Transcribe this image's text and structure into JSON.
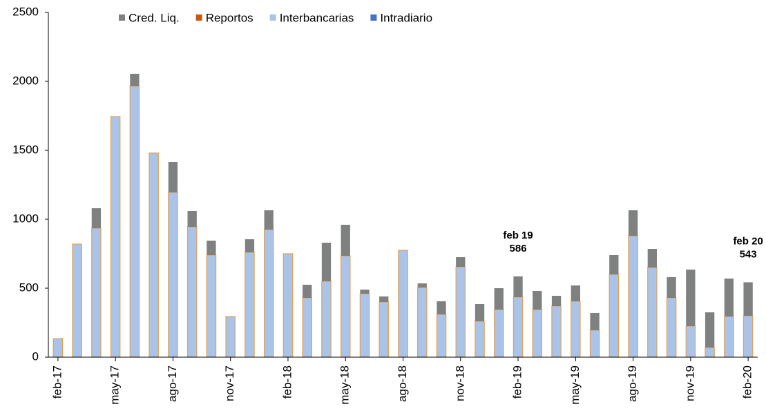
{
  "chart_data": {
    "type": "stacked_bar",
    "categories": [
      "feb-17",
      null,
      null,
      "may-17",
      null,
      null,
      "ago-17",
      null,
      null,
      "nov-17",
      null,
      null,
      "feb-18",
      null,
      null,
      "may-18",
      null,
      null,
      "ago-18",
      null,
      null,
      "nov-18",
      null,
      null,
      "feb-19",
      null,
      null,
      "may-19",
      null,
      null,
      "ago-19",
      null,
      null,
      "nov-19",
      null,
      null,
      "feb-20"
    ],
    "series": [
      {
        "name": "Cred. Liq.",
        "color": "#7f8080",
        "values": [
          0,
          0,
          145,
          0,
          90,
          0,
          220,
          115,
          105,
          0,
          95,
          140,
          0,
          95,
          280,
          225,
          30,
          40,
          0,
          30,
          95,
          70,
          125,
          155,
          151,
          135,
          75,
          115,
          125,
          140,
          185,
          135,
          150,
          410,
          255,
          275,
          243
        ]
      },
      {
        "name": "Reportos",
        "color": "#c55a11",
        "values": [
          0,
          0,
          0,
          0,
          0,
          0,
          0,
          0,
          0,
          0,
          0,
          0,
          0,
          0,
          0,
          0,
          0,
          0,
          0,
          0,
          0,
          0,
          0,
          0,
          0,
          0,
          0,
          0,
          0,
          0,
          0,
          0,
          0,
          0,
          0,
          0,
          0
        ]
      },
      {
        "name": "Interbancarias",
        "color": "#a9c4e8",
        "edgecolor": "#e8a050",
        "values": [
          135,
          820,
          935,
          1745,
          1965,
          1480,
          1195,
          945,
          740,
          295,
          760,
          925,
          750,
          430,
          550,
          735,
          460,
          400,
          775,
          505,
          310,
          655,
          260,
          345,
          435,
          345,
          370,
          405,
          195,
          600,
          880,
          650,
          430,
          225,
          70,
          295,
          300
        ]
      },
      {
        "name": "Intradiario",
        "color": "#4472c4",
        "values": [
          0,
          0,
          0,
          0,
          0,
          0,
          0,
          0,
          0,
          0,
          0,
          0,
          0,
          0,
          0,
          0,
          0,
          0,
          0,
          0,
          0,
          0,
          0,
          0,
          0,
          0,
          0,
          0,
          0,
          0,
          0,
          0,
          0,
          0,
          0,
          0,
          0
        ]
      }
    ],
    "ylim": [
      0,
      2500
    ],
    "yticks": [
      0,
      500,
      1000,
      1500,
      2000,
      2500
    ],
    "annotations": [
      {
        "category": "feb-19",
        "lines": [
          "feb 19",
          "586"
        ]
      },
      {
        "category": "feb-20",
        "lines": [
          "feb 20",
          "543"
        ]
      }
    ]
  }
}
